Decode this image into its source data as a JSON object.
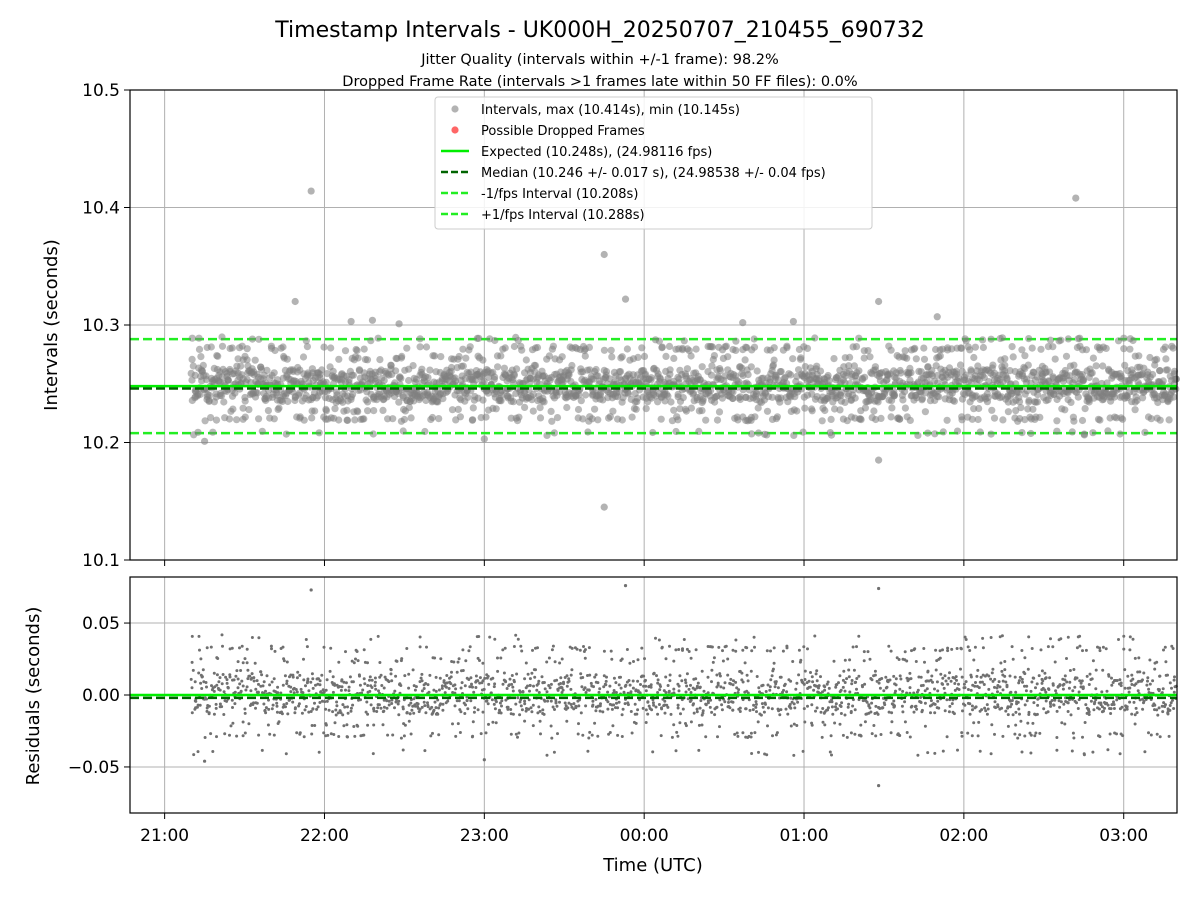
{
  "title": "Timestamp Intervals - UK000H_20250707_210455_690732",
  "subtitle1": "Jitter Quality (intervals within +/-1 frame): 98.2%",
  "subtitle2": "Dropped Frame Rate (intervals >1 frames late within 50 FF files): 0.0%",
  "colors": {
    "points": "#808080",
    "dropped": "#ff5555",
    "expected": "#00ee00",
    "median": "#006400",
    "bounds": "#22ee22",
    "grid": "#b0b0b0"
  },
  "chart_data": [
    {
      "type": "scatter",
      "ylabel": "Intervals (seconds)",
      "ylim": [
        10.1,
        10.5
      ],
      "yticks": [
        "10.1",
        "10.2",
        "10.3",
        "10.4",
        "10.5"
      ],
      "grid": true,
      "legend_position": "top-center",
      "legend": [
        "Intervals, max (10.414s), min (10.145s)",
        "Possible Dropped Frames",
        "Expected (10.248s), (24.98116 fps)",
        "Median (10.246 +/- 0.017 s), (24.98538 +/- 0.04 fps)",
        "-1/fps Interval (10.208s)",
        "+1/fps Interval (10.288s)"
      ],
      "expected": 10.248,
      "median": 10.246,
      "lower_bound": 10.208,
      "upper_bound": 10.288,
      "y_max": 10.414,
      "y_min": 10.145,
      "outliers": [
        {
          "x": "21:55",
          "y": 10.414
        },
        {
          "x": "02:42",
          "y": 10.408
        },
        {
          "x": "23:45",
          "y": 10.36
        },
        {
          "x": "23:53",
          "y": 10.322
        },
        {
          "x": "21:49",
          "y": 10.32
        },
        {
          "x": "01:28",
          "y": 10.32
        },
        {
          "x": "01:50",
          "y": 10.307
        },
        {
          "x": "22:18",
          "y": 10.304
        },
        {
          "x": "22:10",
          "y": 10.303
        },
        {
          "x": "22:28",
          "y": 10.301
        },
        {
          "x": "00:37",
          "y": 10.302
        },
        {
          "x": "00:56",
          "y": 10.303
        },
        {
          "x": "23:45",
          "y": 10.145
        },
        {
          "x": "01:28",
          "y": 10.185
        },
        {
          "x": "21:15",
          "y": 10.201
        },
        {
          "x": "23:00",
          "y": 10.203
        }
      ]
    },
    {
      "type": "scatter",
      "xlabel": "Time (UTC)",
      "ylabel": "Residuals (seconds)",
      "ylim": [
        -0.082,
        0.082
      ],
      "yticks": [
        "−0.05",
        "0.00",
        "0.05"
      ],
      "xticks": [
        "21:00",
        "22:00",
        "23:00",
        "00:00",
        "01:00",
        "02:00",
        "03:00"
      ],
      "xrange": [
        "20:47",
        "03:20"
      ],
      "grid": true,
      "outliers": [
        {
          "x": "21:55",
          "y": 0.073
        },
        {
          "x": "23:53",
          "y": 0.076
        },
        {
          "x": "01:28",
          "y": 0.074
        },
        {
          "x": "01:28",
          "y": -0.063
        },
        {
          "x": "21:15",
          "y": -0.046
        },
        {
          "x": "23:00",
          "y": -0.045
        }
      ]
    }
  ]
}
